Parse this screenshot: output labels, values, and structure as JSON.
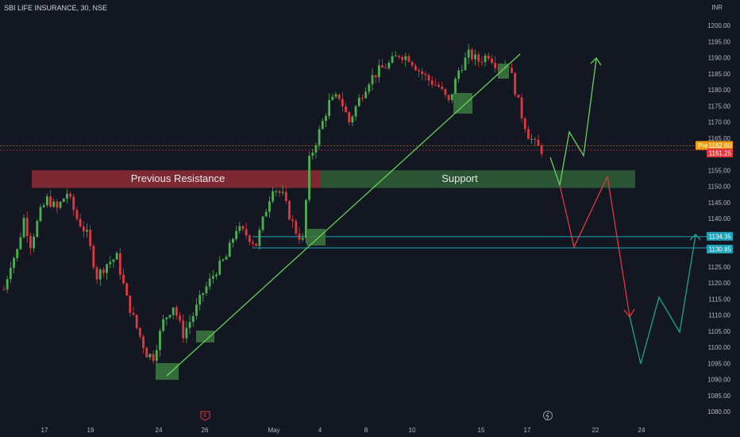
{
  "header": {
    "symbol_title": "SBI LIFE INSURANCE, 30, NSE",
    "currency": "INR"
  },
  "price_axis": {
    "ticks": [
      "1200.00",
      "1195.00",
      "1190.00",
      "1185.00",
      "1180.00",
      "1175.00",
      "1170.00",
      "1165.00",
      "1160.00",
      "1155.00",
      "1150.00",
      "1145.00",
      "1140.00",
      "1135.00",
      "1130.00",
      "1125.00",
      "1120.00",
      "1115.00",
      "1110.00",
      "1105.00",
      "1100.00",
      "1095.00",
      "1090.00",
      "1085.00",
      "1080.00"
    ]
  },
  "time_axis": {
    "ticks": [
      "17",
      "19",
      "24",
      "26",
      "May",
      "4",
      "8",
      "10",
      "15",
      "17",
      "22",
      "24"
    ]
  },
  "price_tags": {
    "pre_label": "Pre",
    "pre_price": "1162.60",
    "last_price": "1161.25",
    "level_upper": "1134.35",
    "level_lower": "1130.85"
  },
  "zones": {
    "resistance_label": "Previous Resistance",
    "support_label": "Support"
  },
  "colors": {
    "background": "#131722",
    "bull": "#4caf50",
    "bear": "#e0383e",
    "resistance_zone": "#8b2a35",
    "support_zone": "#2d5b35",
    "trendline": "#6bdc5a",
    "level_line": "#1ca6c0",
    "pre_tag": "#f39c12",
    "last_tag": "#e0383e",
    "level_tag": "#1aa0b8"
  },
  "icons": {
    "earnings": "earnings-e-icon",
    "dividend": "dividend-lightning-icon"
  },
  "chart_data": {
    "type": "candlestick",
    "title": "SBI LIFE INSURANCE, 30, NSE",
    "currency": "INR",
    "ylim": [
      1078,
      1203
    ],
    "x_ticks": [
      "17",
      "19",
      "24",
      "26",
      "May",
      "4",
      "8",
      "10",
      "15",
      "17",
      "22",
      "24"
    ],
    "close_path": [
      {
        "t": 0,
        "p": 1118
      },
      {
        "t": 2,
        "p": 1126
      },
      {
        "t": 4,
        "p": 1130
      },
      {
        "t": 6,
        "p": 1140
      },
      {
        "t": 8,
        "p": 1132
      },
      {
        "t": 11,
        "p": 1142
      },
      {
        "t": 13,
        "p": 1146
      },
      {
        "t": 16,
        "p": 1143
      },
      {
        "t": 19,
        "p": 1148
      },
      {
        "t": 22,
        "p": 1140
      },
      {
        "t": 25,
        "p": 1135
      },
      {
        "t": 28,
        "p": 1122
      },
      {
        "t": 31,
        "p": 1126
      },
      {
        "t": 34,
        "p": 1128
      },
      {
        "t": 37,
        "p": 1115
      },
      {
        "t": 40,
        "p": 1106
      },
      {
        "t": 43,
        "p": 1098
      },
      {
        "t": 45,
        "p": 1097
      },
      {
        "t": 48,
        "p": 1108
      },
      {
        "t": 51,
        "p": 1113
      },
      {
        "t": 54,
        "p": 1104
      },
      {
        "t": 57,
        "p": 1110
      },
      {
        "t": 60,
        "p": 1117
      },
      {
        "t": 64,
        "p": 1124
      },
      {
        "t": 67,
        "p": 1128
      },
      {
        "t": 70,
        "p": 1137
      },
      {
        "t": 73,
        "p": 1135
      },
      {
        "t": 76,
        "p": 1132
      },
      {
        "t": 79,
        "p": 1143
      },
      {
        "t": 81,
        "p": 1150
      },
      {
        "t": 84,
        "p": 1147
      },
      {
        "t": 86,
        "p": 1141
      },
      {
        "t": 88,
        "p": 1136
      },
      {
        "t": 90,
        "p": 1133
      },
      {
        "t": 92,
        "p": 1158
      },
      {
        "t": 95,
        "p": 1167
      },
      {
        "t": 98,
        "p": 1176
      },
      {
        "t": 101,
        "p": 1178
      },
      {
        "t": 104,
        "p": 1170
      },
      {
        "t": 107,
        "p": 1177
      },
      {
        "t": 110,
        "p": 1183
      },
      {
        "t": 113,
        "p": 1186
      },
      {
        "t": 116,
        "p": 1188
      },
      {
        "t": 119,
        "p": 1191
      },
      {
        "t": 122,
        "p": 1190
      },
      {
        "t": 125,
        "p": 1186
      },
      {
        "t": 128,
        "p": 1183
      },
      {
        "t": 131,
        "p": 1181
      },
      {
        "t": 134,
        "p": 1176
      },
      {
        "t": 137,
        "p": 1186
      },
      {
        "t": 140,
        "p": 1191
      },
      {
        "t": 143,
        "p": 1189
      },
      {
        "t": 146,
        "p": 1191
      },
      {
        "t": 149,
        "p": 1187
      },
      {
        "t": 152,
        "p": 1188
      },
      {
        "t": 154,
        "p": 1180
      },
      {
        "t": 156,
        "p": 1172
      },
      {
        "t": 158,
        "p": 1166
      },
      {
        "t": 160,
        "p": 1163
      },
      {
        "t": 162,
        "p": 1161.25
      }
    ],
    "horizontal_levels": [
      {
        "price": 1162.6,
        "label": "Pre 1162.60"
      },
      {
        "price": 1161.25,
        "label": "1161.25"
      },
      {
        "price": 1134.35,
        "label": "1134.35"
      },
      {
        "price": 1130.85,
        "label": "1130.85"
      }
    ],
    "zones": [
      {
        "label": "Previous Resistance",
        "top": 1155,
        "bottom": 1149.5
      },
      {
        "label": "Support",
        "top": 1155,
        "bottom": 1149.5
      }
    ],
    "projections": [
      {
        "color": "bull",
        "points": [
          [
            1162,
            "now"
          ],
          [
            1150.5,
            "+1"
          ],
          [
            1163.5,
            "+2"
          ],
          [
            1158.5,
            "+3"
          ],
          [
            1190,
            "+4"
          ]
        ]
      },
      {
        "color": "bear",
        "points": [
          [
            1150.5,
            "+1"
          ],
          [
            1131.5,
            "+2"
          ],
          [
            1153,
            "+3"
          ],
          [
            1108.5,
            "+4"
          ]
        ]
      },
      {
        "color": "teal",
        "points": [
          [
            1108.5,
            "+4"
          ],
          [
            1095,
            "+5"
          ],
          [
            1115.5,
            "+6"
          ],
          [
            1104.5,
            "+7"
          ],
          [
            1134.5,
            "+8"
          ]
        ]
      }
    ]
  }
}
